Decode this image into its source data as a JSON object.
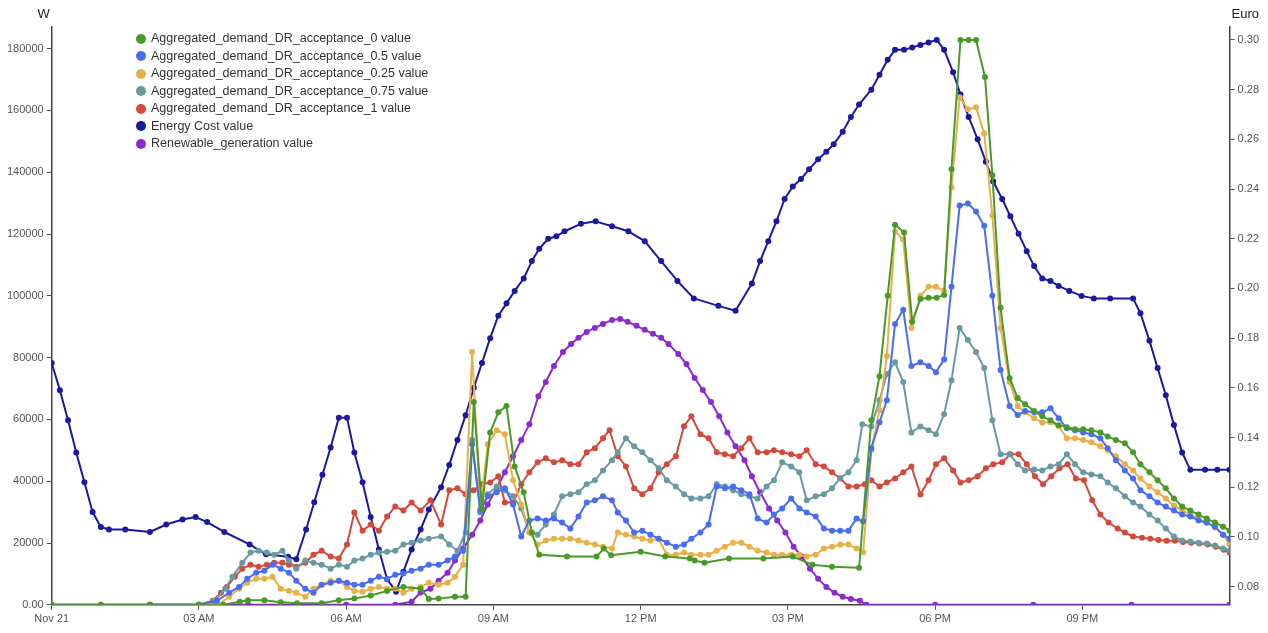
{
  "chart_data": {
    "type": "line",
    "ylabel": "W",
    "y2label": "Euro",
    "legend": "top left",
    "marker": "circle",
    "grid": false,
    "xlim": [
      "--11-21T00:00",
      "--11-22T00:00"
    ],
    "xticks": [
      {
        "value": "--11-21T00:00",
        "label": "Nov 21"
      },
      {
        "value": "--11-21T03:00",
        "label": "03 AM"
      },
      {
        "value": "--11-21T06:00",
        "label": "06 AM"
      },
      {
        "value": "--11-21T09:00",
        "label": "09 AM"
      },
      {
        "value": "--11-21T12:00",
        "label": "12 PM"
      },
      {
        "value": "--11-21T15:00",
        "label": "03 PM"
      },
      {
        "value": "--11-21T18:00",
        "label": "06 PM"
      },
      {
        "value": "--11-21T21:00",
        "label": "09 PM"
      }
    ],
    "ylim": [
      0,
      187000
    ],
    "yticks": [
      {
        "value": 0,
        "label": "0.00"
      },
      20000,
      40000,
      60000,
      80000,
      100000,
      120000,
      140000,
      160000,
      180000
    ],
    "y2lim": [
      0.0727,
      0.3052
    ],
    "y2ticks": [
      {
        "value": 0.08,
        "label": "0.08"
      },
      {
        "value": 0.1,
        "label": "0.10"
      },
      {
        "value": 0.12,
        "label": "0.12"
      },
      {
        "value": 0.14,
        "label": "0.14"
      },
      {
        "value": 0.16,
        "label": "0.16"
      },
      {
        "value": 0.18,
        "label": "0.18"
      },
      {
        "value": 0.2,
        "label": "0.20"
      },
      {
        "value": 0.22,
        "label": "0.22"
      },
      {
        "value": 0.24,
        "label": "0.24"
      },
      {
        "value": 0.26,
        "label": "0.26"
      },
      {
        "value": 0.28,
        "label": "0.28"
      },
      {
        "value": 0.3,
        "label": "0.30"
      }
    ],
    "series": [
      {
        "name": "Aggregated_demand_DR_acceptance_0 value",
        "color": "#4a9a2a",
        "x": [
          "--11-21T00:00",
          "--11-21T01:00",
          "--11-21T02:00",
          "--11-21T03:00",
          "--11-21T03:30",
          "--11-21T03:50",
          "--11-21T04:00",
          "--11-21T04:20",
          "--11-21T04:40",
          "--11-21T05:00",
          "--11-21T05:30",
          "--11-21T05:51",
          "--11-21T06:10",
          "--11-21T06:30",
          "--11-21T06:50",
          "--11-21T07:10",
          "--11-21T07:31",
          "--11-21T07:41",
          "--11-21T07:53",
          "--11-21T08:13",
          "--11-21T08:26",
          "--11-21T08:36",
          "--11-21T08:46",
          "--11-21T08:56",
          "--11-21T09:06",
          "--11-21T09:16",
          "--11-21T09:26",
          "--11-21T09:37",
          "--11-21T09:47",
          "--11-21T09:56",
          "--11-21T10:30",
          "--11-21T11:06",
          "--11-21T11:15",
          "--11-21T11:24",
          "--11-21T12:00",
          "--11-21T12:30",
          "--11-21T13:00",
          "--11-21T13:06",
          "--11-21T13:18",
          "--11-21T13:48",
          "--11-21T14:30",
          "--11-21T15:06",
          "--11-21T15:30",
          "--11-21T15:54",
          "--11-21T16:27",
          "--11-21T16:42",
          "--11-21T16:52",
          "--11-21T17:02",
          "--11-21T17:11",
          "--11-21T17:22",
          "--11-21T17:32",
          "--11-21T17:42",
          "--11-21T17:52",
          "--11-21T18:02",
          "--11-21T18:11",
          "--11-21T18:20",
          "--11-21T18:31",
          "--11-21T18:41",
          "--11-21T18:50",
          "--11-21T19:01",
          "--11-21T19:10",
          "--11-21T19:20",
          "--11-21T19:31",
          "--11-21T19:41",
          "--11-21T19:50",
          "--11-21T20:01",
          "--11-21T20:11",
          "--11-21T20:21",
          "--11-21T20:31",
          "--11-21T20:41",
          "--11-21T20:51",
          "--11-21T21:01",
          "--11-21T21:11",
          "--11-21T21:22",
          "--11-21T21:31",
          "--11-21T21:41",
          "--11-21T21:52",
          "--11-21T22:02",
          "--11-21T22:11",
          "--11-21T22:22",
          "--11-21T22:32",
          "--11-21T22:42",
          "--11-21T22:52",
          "--11-21T23:02",
          "--11-21T23:12",
          "--11-21T23:22",
          "--11-21T23:32",
          "--11-21T23:42",
          "--11-21T23:52",
          "--11-22T00:00"
        ],
        "values": [
          0,
          0,
          0,
          0,
          0,
          1000,
          1500,
          1500,
          800,
          500,
          500,
          1500,
          2000,
          3000,
          4500,
          5800,
          5200,
          1900,
          2000,
          2600,
          2600,
          65600,
          31200,
          55800,
          62300,
          64300,
          44800,
          36400,
          23400,
          16200,
          15600,
          15600,
          18200,
          16000,
          17200,
          15600,
          15000,
          14300,
          13600,
          15000,
          15000,
          15600,
          13000,
          12300,
          12000,
          59700,
          74000,
          100000,
          123000,
          120500,
          91600,
          99000,
          99400,
          99400,
          100300,
          141000,
          182800,
          182800,
          182800,
          170800,
          139000,
          96100,
          73400,
          66900,
          64900,
          62700,
          61000,
          59700,
          58100,
          57500,
          56800,
          56800,
          56500,
          55800,
          54500,
          53300,
          52300,
          49400,
          45500,
          42900,
          40300,
          37700,
          34400,
          31800,
          30500,
          29200,
          27900,
          26600,
          25300,
          24000
        ]
      },
      {
        "name": "Aggregated_demand_DR_acceptance_0.5 value",
        "color": "#4a6cf0",
        "x": [
          "--11-21T02:00",
          "--11-21T03:00",
          "--11-21T03:22",
          "--11-21T03:37",
          "--11-21T03:49",
          "--11-21T03:59",
          "--11-21T04:10",
          "--11-21T04:20",
          "--11-21T04:30",
          "--11-21T04:40",
          "--11-21T04:50",
          "--11-21T04:59",
          "--11-21T05:10",
          "--11-21T05:20",
          "--11-21T05:30",
          "--11-21T05:41",
          "--11-21T05:51",
          "--11-21T06:01",
          "--11-21T06:10",
          "--11-21T06:20",
          "--11-21T06:30",
          "--11-21T06:40",
          "--11-21T06:50",
          "--11-21T07:00",
          "--11-21T07:10",
          "--11-21T07:20",
          "--11-21T07:31",
          "--11-21T07:41",
          "--11-21T07:53",
          "--11-21T08:04",
          "--11-21T08:13",
          "--11-21T08:23",
          "--11-21T08:34",
          "--11-21T08:44",
          "--11-21T08:53",
          "--11-21T09:04",
          "--11-21T09:14",
          "--11-21T09:24",
          "--11-21T09:34",
          "--11-21T09:44",
          "--11-21T09:54",
          "--11-21T10:04",
          "--11-21T10:14",
          "--11-21T10:24",
          "--11-21T10:34",
          "--11-21T10:44",
          "--11-21T10:54",
          "--11-21T11:04",
          "--11-21T11:14",
          "--11-21T11:25",
          "--11-21T11:32",
          "--11-21T11:42",
          "--11-21T11:52",
          "--11-21T12:02",
          "--11-21T12:12",
          "--11-21T12:22",
          "--11-21T12:32",
          "--11-21T12:43",
          "--11-21T12:53",
          "--11-21T13:02",
          "--11-21T13:13",
          "--11-21T13:23",
          "--11-21T13:33",
          "--11-21T13:43",
          "--11-21T13:53",
          "--11-21T14:03",
          "--11-21T14:13",
          "--11-21T14:23",
          "--11-21T14:34",
          "--11-21T14:43",
          "--11-21T14:53",
          "--11-21T15:04",
          "--11-21T15:14",
          "--11-21T15:23",
          "--11-21T15:34",
          "--11-21T15:44",
          "--11-21T15:54",
          "--11-21T16:04",
          "--11-21T16:14",
          "--11-21T16:24",
          "--11-21T16:32",
          "--11-21T16:42",
          "--11-21T16:52",
          "--11-21T17:01",
          "--11-21T17:11",
          "--11-21T17:21",
          "--11-21T17:31",
          "--11-21T17:42",
          "--11-21T17:52",
          "--11-21T18:01",
          "--11-21T18:11",
          "--11-21T18:20",
          "--11-21T18:30",
          "--11-21T18:40",
          "--11-21T18:50",
          "--11-21T19:00",
          "--11-21T19:10",
          "--11-21T19:20",
          "--11-21T19:31",
          "--11-21T19:41",
          "--11-21T19:50",
          "--11-21T20:01",
          "--11-21T20:11",
          "--11-21T20:21",
          "--11-21T20:31",
          "--11-21T20:41",
          "--11-21T20:51",
          "--11-21T21:01",
          "--11-21T21:11",
          "--11-21T21:22",
          "--11-21T21:31",
          "--11-21T21:41",
          "--11-21T21:52",
          "--11-21T22:02",
          "--11-21T22:11",
          "--11-21T22:22",
          "--11-21T22:32",
          "--11-21T22:42",
          "--11-21T22:52",
          "--11-21T23:02",
          "--11-21T23:12",
          "--11-21T23:22",
          "--11-21T23:32",
          "--11-21T23:42",
          "--11-21T23:52",
          "--11-22T00:00"
        ],
        "values": [
          0,
          0,
          1300,
          3900,
          5800,
          8400,
          10400,
          11000,
          13000,
          11700,
          10400,
          7800,
          5200,
          3900,
          6500,
          7100,
          7800,
          7100,
          6500,
          6500,
          7800,
          9100,
          8400,
          9700,
          10100,
          11000,
          11700,
          13000,
          13000,
          14300,
          15600,
          17500,
          52000,
          30500,
          35100,
          36400,
          37700,
          32500,
          22100,
          27300,
          27900,
          27300,
          27900,
          26600,
          24700,
          28600,
          33100,
          33800,
          35100,
          33800,
          29900,
          27300,
          23400,
          24000,
          22700,
          21400,
          20100,
          18800,
          19500,
          21400,
          23400,
          26000,
          38300,
          37700,
          38300,
          37100,
          35800,
          27900,
          26600,
          29200,
          31200,
          34400,
          31200,
          29900,
          28600,
          24700,
          24000,
          24000,
          24000,
          27900,
          27000,
          50700,
          59100,
          66200,
          90900,
          95500,
          77300,
          78500,
          77300,
          75300,
          79400,
          102900,
          129200,
          129900,
          127300,
          122700,
          100000,
          76000,
          64300,
          61400,
          62700,
          62300,
          62300,
          63600,
          60400,
          57100,
          56500,
          55800,
          55200,
          53900,
          50700,
          46800,
          43500,
          40900,
          37100,
          35100,
          33100,
          31800,
          30500,
          29200,
          28600,
          27300,
          26600,
          25300,
          22700,
          21400
        ]
      },
      {
        "name": "Aggregated_demand_DR_acceptance_0.25 value",
        "color": "#e8b04a",
        "x": [
          "--11-21T03:00",
          "--11-21T03:24",
          "--11-21T03:37",
          "--11-21T03:49",
          "--11-21T03:59",
          "--11-21T04:10",
          "--11-21T04:20",
          "--11-21T04:30",
          "--11-21T04:40",
          "--11-21T04:50",
          "--11-21T04:59",
          "--11-21T05:10",
          "--11-21T05:20",
          "--11-21T05:30",
          "--11-21T05:41",
          "--11-21T05:51",
          "--11-21T06:01",
          "--11-21T06:10",
          "--11-21T06:20",
          "--11-21T06:30",
          "--11-21T06:40",
          "--11-21T06:50",
          "--11-21T07:00",
          "--11-21T07:10",
          "--11-21T07:20",
          "--11-21T07:31",
          "--11-21T07:41",
          "--11-21T07:53",
          "--11-21T08:04",
          "--11-21T08:13",
          "--11-21T08:23",
          "--11-21T08:34",
          "--11-21T08:44",
          "--11-21T08:53",
          "--11-21T09:04",
          "--11-21T09:14",
          "--11-21T09:24",
          "--11-21T09:34",
          "--11-21T09:44",
          "--11-21T09:54",
          "--11-21T10:04",
          "--11-21T10:14",
          "--11-21T10:24",
          "--11-21T10:34",
          "--11-21T10:44",
          "--11-21T10:54",
          "--11-21T11:04",
          "--11-21T11:14",
          "--11-21T11:25",
          "--11-21T11:32",
          "--11-21T11:42",
          "--11-21T11:52",
          "--11-21T12:02",
          "--11-21T12:12",
          "--11-21T12:22",
          "--11-21T12:32",
          "--11-21T12:43",
          "--11-21T12:53",
          "--11-21T13:02",
          "--11-21T13:13",
          "--11-21T13:23",
          "--11-21T13:33",
          "--11-21T13:43",
          "--11-21T13:53",
          "--11-21T14:03",
          "--11-21T14:13",
          "--11-21T14:23",
          "--11-21T14:34",
          "--11-21T14:43",
          "--11-21T14:53",
          "--11-21T15:04",
          "--11-21T15:14",
          "--11-21T15:23",
          "--11-21T15:34",
          "--11-21T15:44",
          "--11-21T15:54",
          "--11-21T16:04",
          "--11-21T16:14",
          "--11-21T16:24",
          "--11-21T16:32",
          "--11-21T16:42",
          "--11-21T16:52",
          "--11-21T17:01",
          "--11-21T17:11",
          "--11-21T17:21",
          "--11-21T17:31",
          "--11-21T17:42",
          "--11-21T17:52",
          "--11-21T18:01",
          "--11-21T18:11",
          "--11-21T18:20",
          "--11-21T18:30",
          "--11-21T18:40",
          "--11-21T18:50",
          "--11-21T19:00",
          "--11-21T19:10",
          "--11-21T19:20",
          "--11-21T19:31",
          "--11-21T19:41",
          "--11-21T19:50",
          "--11-21T20:01",
          "--11-21T20:11",
          "--11-21T20:21",
          "--11-21T20:31",
          "--11-21T20:41",
          "--11-21T20:51",
          "--11-21T21:01",
          "--11-21T21:11",
          "--11-21T21:22",
          "--11-21T21:31",
          "--11-21T21:41",
          "--11-21T21:52",
          "--11-21T22:02",
          "--11-21T22:11",
          "--11-21T22:22",
          "--11-21T22:32",
          "--11-21T22:42",
          "--11-21T22:52",
          "--11-21T23:02",
          "--11-21T23:12",
          "--11-21T23:22",
          "--11-21T23:32",
          "--11-21T23:42",
          "--11-21T23:52",
          "--11-22T00:00"
        ],
        "values": [
          0,
          0,
          2600,
          5200,
          7100,
          8400,
          8400,
          9100,
          5200,
          4500,
          3900,
          2600,
          5200,
          6500,
          7800,
          7800,
          5800,
          4500,
          4200,
          5200,
          5800,
          5200,
          5200,
          3900,
          5200,
          5800,
          7100,
          6500,
          7100,
          9100,
          13000,
          81800,
          31200,
          52000,
          56500,
          55200,
          40300,
          32500,
          23400,
          19500,
          20800,
          21400,
          21400,
          21400,
          20800,
          20100,
          19500,
          18800,
          18200,
          23400,
          22700,
          22100,
          21400,
          20800,
          21400,
          16200,
          16200,
          16900,
          16200,
          16200,
          16200,
          17500,
          18800,
          20100,
          20100,
          18800,
          17500,
          16900,
          16200,
          16200,
          16200,
          16200,
          15600,
          16200,
          18200,
          18800,
          19500,
          19500,
          18200,
          17000,
          50000,
          63000,
          80500,
          120800,
          118200,
          89600,
          100000,
          102900,
          102900,
          101600,
          135100,
          164300,
          160400,
          161000,
          152600,
          126000,
          89600,
          72100,
          64300,
          62300,
          60400,
          59000,
          59100,
          57800,
          53900,
          53900,
          53300,
          52600,
          51300,
          50000,
          48100,
          45500,
          43500,
          40900,
          38300,
          36400,
          34400,
          32100,
          30500,
          29200,
          27900,
          26600,
          25000,
          22700,
          19500
        ]
      },
      {
        "name": "Aggregated_demand_DR_acceptance_0.75 value",
        "color": "#6a9aa0",
        "x": [
          "--11-21T00:00",
          "--11-21T01:00",
          "--11-21T02:00",
          "--11-21T03:00",
          "--11-21T03:19",
          "--11-21T03:32",
          "--11-21T03:41",
          "--11-21T03:53",
          "--11-21T04:03",
          "--11-21T04:13",
          "--11-21T04:23",
          "--11-21T04:32",
          "--11-21T04:42",
          "--11-21T04:50",
          "--11-21T04:59",
          "--11-21T05:10",
          "--11-21T05:20",
          "--11-21T05:30",
          "--11-21T05:41",
          "--11-21T05:51",
          "--11-21T06:01",
          "--11-21T06:10",
          "--11-21T06:20",
          "--11-21T06:30",
          "--11-21T06:40",
          "--11-21T06:50",
          "--11-21T07:00",
          "--11-21T07:10",
          "--11-21T07:20",
          "--11-21T07:31",
          "--11-21T07:41",
          "--11-21T07:56",
          "--11-21T08:06",
          "--11-21T08:16",
          "--11-21T08:26",
          "--11-21T08:34",
          "--11-21T08:44",
          "--11-21T08:53",
          "--11-21T09:04",
          "--11-21T09:14",
          "--11-21T09:24",
          "--11-21T09:34",
          "--11-21T09:44",
          "--11-21T09:54",
          "--11-21T10:04",
          "--11-21T10:14",
          "--11-21T10:24",
          "--11-21T10:34",
          "--11-21T10:44",
          "--11-21T10:54",
          "--11-21T11:04",
          "--11-21T11:14",
          "--11-21T11:25",
          "--11-21T11:32",
          "--11-21T11:42",
          "--11-21T11:52",
          "--11-21T12:02",
          "--11-21T12:12",
          "--11-21T12:22",
          "--11-21T12:32",
          "--11-21T12:43",
          "--11-21T12:53",
          "--11-21T13:02",
          "--11-21T13:13",
          "--11-21T13:23",
          "--11-21T13:33",
          "--11-21T13:43",
          "--11-21T13:53",
          "--11-21T14:03",
          "--11-21T14:13",
          "--11-21T14:23",
          "--11-21T14:34",
          "--11-21T14:43",
          "--11-21T14:53",
          "--11-21T15:04",
          "--11-21T15:14",
          "--11-21T15:23",
          "--11-21T15:34",
          "--11-21T15:44",
          "--11-21T15:54",
          "--11-21T16:04",
          "--11-21T16:14",
          "--11-21T16:24",
          "--11-21T16:31",
          "--11-21T16:42",
          "--11-21T16:52",
          "--11-21T17:01",
          "--11-21T17:11",
          "--11-21T17:21",
          "--11-21T17:31",
          "--11-21T17:42",
          "--11-21T17:52",
          "--11-21T18:01",
          "--11-21T18:11",
          "--11-21T18:20",
          "--11-21T18:30",
          "--11-21T18:40",
          "--11-21T18:50",
          "--11-21T19:00",
          "--11-21T19:10",
          "--11-21T19:20",
          "--11-21T19:31",
          "--11-21T19:41",
          "--11-21T19:50",
          "--11-21T20:01",
          "--11-21T20:11",
          "--11-21T20:21",
          "--11-21T20:31",
          "--11-21T20:41",
          "--11-21T20:51",
          "--11-21T21:01",
          "--11-21T21:11",
          "--11-21T21:22",
          "--11-21T21:31",
          "--11-21T21:41",
          "--11-21T21:52",
          "--11-21T22:02",
          "--11-21T22:11",
          "--11-21T22:22",
          "--11-21T22:32",
          "--11-21T22:42",
          "--11-21T22:52",
          "--11-21T23:02",
          "--11-21T23:12",
          "--11-21T23:22",
          "--11-21T23:32",
          "--11-21T23:42",
          "--11-21T23:52",
          "--11-22T00:00"
        ],
        "values": [
          0,
          0,
          0,
          0,
          1300,
          5200,
          9100,
          13600,
          16900,
          17500,
          16900,
          16200,
          17500,
          14300,
          11700,
          14300,
          13600,
          13000,
          11700,
          13000,
          12300,
          14300,
          15000,
          16200,
          16900,
          17200,
          17500,
          19500,
          20100,
          20800,
          21400,
          22100,
          19500,
          17500,
          23400,
          53300,
          29900,
          35800,
          38300,
          37100,
          35100,
          31200,
          23400,
          22700,
          26000,
          29200,
          35100,
          35800,
          36400,
          39000,
          40300,
          43500,
          46800,
          49400,
          53900,
          51300,
          49400,
          46800,
          44200,
          40300,
          38300,
          35800,
          34400,
          34400,
          35100,
          39000,
          38300,
          37100,
          35800,
          35100,
          34400,
          38300,
          40300,
          46100,
          44800,
          42900,
          33800,
          35100,
          35800,
          37700,
          41000,
          42900,
          46800,
          58400,
          57700,
          66200,
          74700,
          78500,
          72100,
          55800,
          57700,
          56500,
          55200,
          61700,
          72700,
          89600,
          85700,
          81800,
          76600,
          59700,
          48700,
          48700,
          45500,
          43500,
          43800,
          43500,
          44800,
          45500,
          48700,
          45500,
          42900,
          42200,
          41600,
          39600,
          37700,
          35100,
          33100,
          31800,
          29200,
          27300,
          24700,
          22100,
          20800,
          20500,
          20100,
          19800,
          19200,
          18200,
          17500
        ]
      },
      {
        "name": "Aggregated_demand_DR_acceptance_1 value",
        "color": "#d24a3c",
        "x": [
          "--11-21T03:00",
          "--11-21T03:17",
          "--11-21T03:27",
          "--11-21T03:34",
          "--11-21T03:44",
          "--11-21T03:53",
          "--11-21T04:03",
          "--11-21T04:13",
          "--11-21T04:23",
          "--11-21T04:32",
          "--11-21T04:42",
          "--11-21T04:50",
          "--11-21T04:59",
          "--11-21T05:10",
          "--11-21T05:20",
          "--11-21T05:30",
          "--11-21T05:41",
          "--11-21T05:51",
          "--11-21T06:01",
          "--11-21T06:10",
          "--11-21T06:20",
          "--11-21T06:30",
          "--11-21T06:40",
          "--11-21T06:50",
          "--11-21T07:00",
          "--11-21T07:10",
          "--11-21T07:20",
          "--11-21T07:31",
          "--11-21T07:43",
          "--11-21T07:56",
          "--11-21T08:06",
          "--11-21T08:16",
          "--11-21T08:26",
          "--11-21T08:36",
          "--11-21T08:46",
          "--11-21T08:56",
          "--11-21T09:06",
          "--11-21T09:14",
          "--11-21T09:24",
          "--11-21T09:34",
          "--11-21T09:44",
          "--11-21T09:54",
          "--11-21T10:04",
          "--11-21T10:14",
          "--11-21T10:24",
          "--11-21T10:34",
          "--11-21T10:44",
          "--11-21T10:54",
          "--11-21T11:04",
          "--11-21T11:14",
          "--11-21T11:22",
          "--11-21T11:32",
          "--11-21T11:42",
          "--11-21T11:52",
          "--11-21T12:02",
          "--11-21T12:12",
          "--11-21T12:22",
          "--11-21T12:32",
          "--11-21T12:43",
          "--11-21T12:53",
          "--11-21T13:02",
          "--11-21T13:13",
          "--11-21T13:23",
          "--11-21T13:33",
          "--11-21T13:43",
          "--11-21T13:53",
          "--11-21T14:03",
          "--11-21T14:13",
          "--11-21T14:23",
          "--11-21T14:34",
          "--11-21T14:43",
          "--11-21T14:53",
          "--11-21T15:04",
          "--11-21T15:14",
          "--11-21T15:23",
          "--11-21T15:34",
          "--11-21T15:44",
          "--11-21T15:54",
          "--11-21T16:04",
          "--11-21T16:14",
          "--11-21T16:24",
          "--11-21T16:34",
          "--11-21T16:42",
          "--11-21T16:52",
          "--11-21T17:01",
          "--11-21T17:11",
          "--11-21T17:21",
          "--11-21T17:31",
          "--11-21T17:42",
          "--11-21T17:52",
          "--11-21T18:01",
          "--11-21T18:11",
          "--11-21T18:22",
          "--11-21T18:31",
          "--11-21T18:41",
          "--11-21T18:52",
          "--11-21T19:02",
          "--11-21T19:11",
          "--11-21T19:22",
          "--11-21T19:32",
          "--11-21T19:42",
          "--11-21T19:52",
          "--11-21T20:02",
          "--11-21T20:12",
          "--11-21T20:22",
          "--11-21T20:32",
          "--11-21T20:42",
          "--11-21T20:52",
          "--11-21T21:02",
          "--11-21T21:12",
          "--11-21T21:22",
          "--11-21T21:32",
          "--11-21T21:43",
          "--11-21T21:52",
          "--11-21T22:02",
          "--11-21T22:13",
          "--11-21T22:23",
          "--11-21T22:33",
          "--11-21T22:43",
          "--11-21T22:53",
          "--11-21T23:03",
          "--11-21T23:13",
          "--11-21T23:23",
          "--11-21T23:33",
          "--11-21T23:43",
          "--11-21T23:53",
          "--11-22T00:00"
        ],
        "values": [
          0,
          1300,
          3900,
          5800,
          9100,
          11700,
          13000,
          12300,
          13000,
          13600,
          13600,
          13000,
          12300,
          13600,
          16200,
          17500,
          15600,
          15000,
          19500,
          29900,
          24000,
          26000,
          24000,
          28600,
          31800,
          30500,
          33100,
          30500,
          33800,
          26000,
          37100,
          37700,
          35800,
          37100,
          39000,
          39600,
          41600,
          33100,
          33100,
          39000,
          42900,
          46100,
          47400,
          46100,
          46800,
          45500,
          45500,
          49400,
          50700,
          53900,
          56500,
          48100,
          44800,
          37700,
          35800,
          37700,
          42900,
          45500,
          48100,
          57800,
          61000,
          55200,
          53900,
          49400,
          48700,
          48100,
          50700,
          53900,
          49400,
          49400,
          50000,
          49400,
          48700,
          48100,
          50000,
          45500,
          44800,
          42900,
          40900,
          38300,
          38300,
          39000,
          40300,
          38300,
          39600,
          40900,
          42900,
          44800,
          35700,
          40300,
          45500,
          47400,
          43500,
          39600,
          40300,
          41600,
          44200,
          45500,
          46100,
          48700,
          48700,
          45500,
          41600,
          39000,
          41600,
          44200,
          45500,
          40900,
          40300,
          33800,
          29200,
          26600,
          24700,
          23400,
          22100,
          21700,
          21400,
          21000,
          20700,
          20700,
          20300,
          20100,
          19800,
          19500,
          18800,
          17800,
          16900
        ]
      },
      {
        "name": "Energy Cost value",
        "color": "#1a1aa0",
        "axis": "y2",
        "x": [
          "--11-21T00:00",
          "--11-21T00:10",
          "--11-21T00:20",
          "--11-21T00:30",
          "--11-21T00:40",
          "--11-21T00:50",
          "--11-21T01:00",
          "--11-21T01:10",
          "--11-21T01:30",
          "--11-21T02:00",
          "--11-21T02:20",
          "--11-21T02:40",
          "--11-21T02:56",
          "--11-21T03:10",
          "--11-21T03:31",
          "--11-21T04:02",
          "--11-21T04:22",
          "--11-21T04:49",
          "--11-21T04:59",
          "--11-21T05:11",
          "--11-21T05:21",
          "--11-21T05:31",
          "--11-21T05:41",
          "--11-21T05:51",
          "--11-21T06:01",
          "--11-21T06:10",
          "--11-21T06:20",
          "--11-21T06:30",
          "--11-21T06:40",
          "--11-21T06:50",
          "--11-21T07:01",
          "--11-21T07:10",
          "--11-21T07:20",
          "--11-21T07:31",
          "--11-21T07:41",
          "--11-21T07:56",
          "--11-21T08:06",
          "--11-21T08:16",
          "--11-21T08:26",
          "--11-21T08:36",
          "--11-21T08:46",
          "--11-21T08:56",
          "--11-21T09:06",
          "--11-21T09:16",
          "--11-21T09:26",
          "--11-21T09:37",
          "--11-21T09:47",
          "--11-21T09:56",
          "--11-21T10:07",
          "--11-21T10:17",
          "--11-21T10:27",
          "--11-21T10:47",
          "--11-21T11:05",
          "--11-21T11:25",
          "--11-21T11:45",
          "--11-21T12:05",
          "--11-21T12:25",
          "--11-21T12:45",
          "--11-21T13:05",
          "--11-21T13:35",
          "--11-21T13:56",
          "--11-21T14:16",
          "--11-21T14:26",
          "--11-21T14:36",
          "--11-21T14:46",
          "--11-21T14:56",
          "--11-21T15:06",
          "--11-21T15:16",
          "--11-21T15:26",
          "--11-21T15:37",
          "--11-21T15:47",
          "--11-21T15:56",
          "--11-21T16:07",
          "--11-21T16:17",
          "--11-21T16:27",
          "--11-21T16:42",
          "--11-21T16:52",
          "--11-21T17:02",
          "--11-21T17:11",
          "--11-21T17:22",
          "--11-21T17:32",
          "--11-21T17:42",
          "--11-21T17:52",
          "--11-21T18:02",
          "--11-21T18:11",
          "--11-21T18:22",
          "--11-21T18:31",
          "--11-21T18:41",
          "--11-21T18:52",
          "--11-21T19:02",
          "--11-21T19:11",
          "--11-21T19:22",
          "--11-21T19:32",
          "--11-21T19:42",
          "--11-21T19:52",
          "--11-21T20:01",
          "--11-21T20:11",
          "--11-21T20:21",
          "--11-21T20:31",
          "--11-21T20:44",
          "--11-21T20:59",
          "--11-21T21:14",
          "--11-21T21:34",
          "--11-21T22:02",
          "--11-21T22:11",
          "--11-21T22:22",
          "--11-21T22:32",
          "--11-21T22:42",
          "--11-21T22:52",
          "--11-21T23:02",
          "--11-21T23:12",
          "--11-21T23:30",
          "--11-21T23:45",
          "--11-22T00:00"
        ],
        "values": [
          0.17,
          0.159,
          0.147,
          0.134,
          0.122,
          0.11,
          0.104,
          0.103,
          0.103,
          0.102,
          0.105,
          0.107,
          0.108,
          0.106,
          0.102,
          0.097,
          0.093,
          0.092,
          0.091,
          0.103,
          0.114,
          0.125,
          0.136,
          0.148,
          0.148,
          0.134,
          0.122,
          0.108,
          0.095,
          0.083,
          0.078,
          0.086,
          0.095,
          0.103,
          0.111,
          0.12,
          0.129,
          0.139,
          0.149,
          0.16,
          0.17,
          0.18,
          0.189,
          0.194,
          0.199,
          0.204,
          0.211,
          0.216,
          0.22,
          0.221,
          0.223,
          0.226,
          0.227,
          0.225,
          0.223,
          0.219,
          0.211,
          0.203,
          0.196,
          0.193,
          0.191,
          0.202,
          0.211,
          0.219,
          0.227,
          0.236,
          0.241,
          0.244,
          0.248,
          0.252,
          0.255,
          0.258,
          0.263,
          0.269,
          0.274,
          0.28,
          0.286,
          0.292,
          0.296,
          0.296,
          0.297,
          0.298,
          0.299,
          0.3,
          0.296,
          0.287,
          0.278,
          0.269,
          0.26,
          0.251,
          0.243,
          0.236,
          0.229,
          0.222,
          0.215,
          0.209,
          0.204,
          0.203,
          0.201,
          0.199,
          0.197,
          0.196,
          0.196,
          0.196,
          0.19,
          0.179,
          0.168,
          0.157,
          0.145,
          0.134,
          0.127,
          0.127,
          0.127,
          0.127
        ]
      },
      {
        "name": "Renewable_generation value",
        "color": "#8a2ad0",
        "x": [
          "--11-21T00:00",
          "--11-21T02:00",
          "--11-21T04:00",
          "--11-21T06:00",
          "--11-21T07:00",
          "--11-21T07:20",
          "--11-21T07:31",
          "--11-21T07:43",
          "--11-21T07:53",
          "--11-21T08:04",
          "--11-21T08:13",
          "--11-21T08:23",
          "--11-21T08:34",
          "--11-21T08:44",
          "--11-21T08:53",
          "--11-21T09:04",
          "--11-21T09:14",
          "--11-21T09:24",
          "--11-21T09:34",
          "--11-21T09:44",
          "--11-21T09:55",
          "--11-21T10:04",
          "--11-21T10:14",
          "--11-21T10:25",
          "--11-21T10:35",
          "--11-21T10:44",
          "--11-21T10:54",
          "--11-21T11:04",
          "--11-21T11:14",
          "--11-21T11:25",
          "--11-21T11:35",
          "--11-21T11:44",
          "--11-21T11:55",
          "--11-21T12:05",
          "--11-21T12:15",
          "--11-21T12:25",
          "--11-21T12:34",
          "--11-21T12:46",
          "--11-21T12:56",
          "--11-21T13:06",
          "--11-21T13:16",
          "--11-21T13:26",
          "--11-21T13:36",
          "--11-21T13:46",
          "--11-21T13:56",
          "--11-21T14:07",
          "--11-21T14:16",
          "--11-21T14:26",
          "--11-21T14:37",
          "--11-21T14:47",
          "--11-21T14:57",
          "--11-21T15:07",
          "--11-21T15:17",
          "--11-21T15:27",
          "--11-21T15:37",
          "--11-21T15:47",
          "--11-21T15:57",
          "--11-21T16:07",
          "--11-21T16:17",
          "--11-21T16:28",
          "--11-21T16:36",
          "--11-21T18:00",
          "--11-21T20:00",
          "--11-21T22:00",
          "--11-22T00:00"
        ],
        "values": [
          0,
          0,
          0,
          0,
          0,
          1000,
          4000,
          5200,
          7800,
          10400,
          14300,
          18200,
          22700,
          27300,
          32500,
          37700,
          42900,
          48100,
          53300,
          58400,
          67500,
          72100,
          77300,
          81800,
          84400,
          86400,
          88300,
          89600,
          90900,
          92200,
          92500,
          91600,
          90300,
          89000,
          87700,
          86400,
          84400,
          81200,
          77900,
          73400,
          69500,
          65600,
          61000,
          55800,
          51300,
          46800,
          41600,
          36400,
          31200,
          27300,
          23400,
          18800,
          15600,
          11700,
          8400,
          5800,
          3900,
          2600,
          1900,
          1300,
          0,
          0,
          0,
          0,
          0
        ]
      }
    ]
  }
}
